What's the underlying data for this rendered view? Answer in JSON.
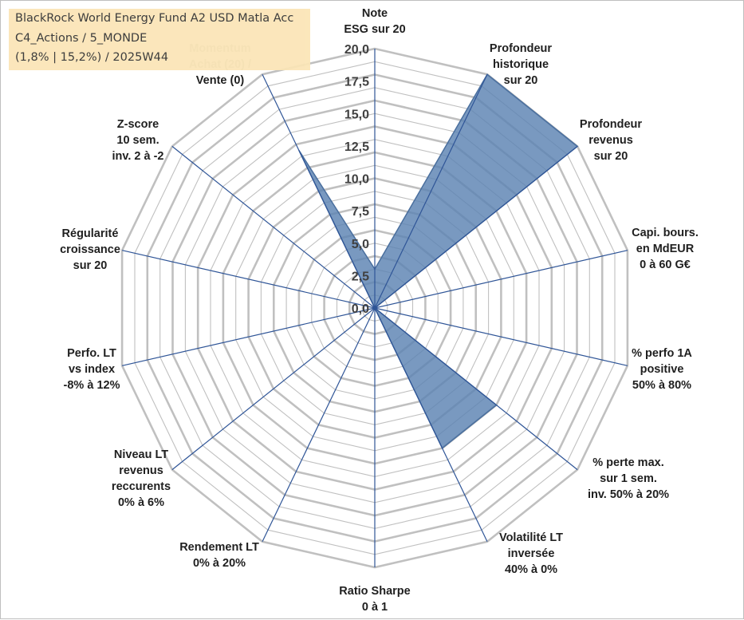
{
  "title_box": {
    "line1": "BlackRock World Energy Fund A2 USD Matla Acc",
    "line2": "C4_Actions / 5_MONDE",
    "line3": "(1,8% | 15,2%) / 2025W44"
  },
  "colors": {
    "fill": "#5b82b2",
    "spoke": "#2f5597",
    "grid": "#c0c0c0",
    "title_bg": "#fbe5b6"
  },
  "chart_data": {
    "type": "radar",
    "rmin": 0,
    "rmax": 20,
    "tick_labels": [
      "0,0",
      "2,5",
      "5,0",
      "7,5",
      "10,0",
      "12,5",
      "15,0",
      "17,5",
      "20,0"
    ],
    "axes": [
      {
        "label": [
          "Note",
          "ESG sur 20"
        ],
        "value": 3
      },
      {
        "label": [
          "Profondeur",
          "historique",
          "sur 20"
        ],
        "value": 20
      },
      {
        "label": [
          "Profondeur",
          "revenus",
          "sur 20"
        ],
        "value": 20
      },
      {
        "label": [
          "Capi. bours.",
          "en MdEUR",
          "0 à 60 G€"
        ],
        "value": 0
      },
      {
        "label": [
          "% perfo 1A",
          "positive",
          "50% à 80%"
        ],
        "value": 0
      },
      {
        "label": [
          "% perte max.",
          "sur 1 sem.",
          "inv. 50% à 20%"
        ],
        "value": 12
      },
      {
        "label": [
          "Volatilité LT",
          "inversée",
          "40% à 0%"
        ],
        "value": 12
      },
      {
        "label": [
          "Ratio Sharpe",
          "0 à 1"
        ],
        "value": 0
      },
      {
        "label": [
          "Rendement LT",
          "0% à 20%"
        ],
        "value": 0
      },
      {
        "label": [
          "Niveau LT",
          "revenus",
          "reccurents",
          "0% à 6%"
        ],
        "value": 0
      },
      {
        "label": [
          "Perfo. LT",
          "vs index",
          "-8% à 12%"
        ],
        "value": 0
      },
      {
        "label": [
          "Régularité",
          "croissance",
          "sur 20"
        ],
        "value": 0
      },
      {
        "label": [
          "Z-score",
          "10 sem.",
          "inv. 2 à -2"
        ],
        "value": 0
      },
      {
        "label": [
          "Momentum",
          "Achat (20) /",
          "Vente (0)"
        ],
        "value": 13.5
      }
    ]
  }
}
